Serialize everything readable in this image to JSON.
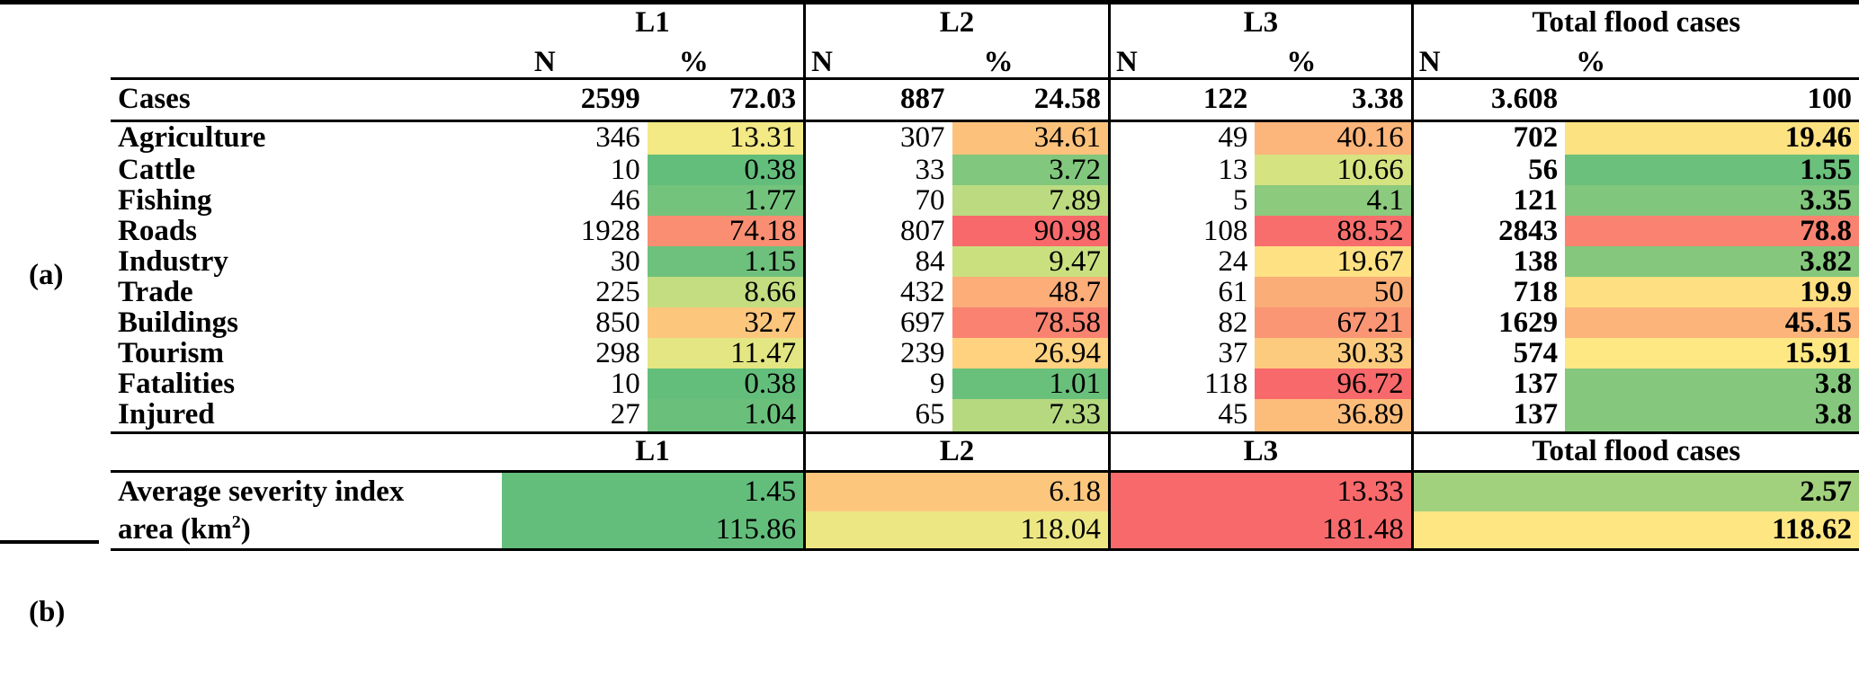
{
  "side_labels": {
    "a": "(a)",
    "b": "(b)"
  },
  "groups": {
    "l1": "L1",
    "l2": "L2",
    "l3": "L3",
    "total": "Total flood cases"
  },
  "subheaders": {
    "n": "N",
    "pct": "%"
  },
  "cases": {
    "label": "Cases",
    "l1_n": "2599",
    "l1_pct": "72.03",
    "l2_n": "887",
    "l2_pct": "24.58",
    "l3_n": "122",
    "l3_pct": "3.38",
    "total_n": "3.608",
    "total_pct": "100"
  },
  "rows": [
    {
      "label": "Agriculture",
      "l1_n": "346",
      "l1_pct": "13.31",
      "l2_n": "307",
      "l2_pct": "34.61",
      "l3_n": "49",
      "l3_pct": "40.16",
      "total_n": "702",
      "total_pct": "19.46",
      "colors": {
        "l1": "#f3e985",
        "l2": "#fcc27c",
        "l3": "#fcb57a",
        "total": "#fde282"
      }
    },
    {
      "label": "Cattle",
      "l1_n": "10",
      "l1_pct": "0.38",
      "l2_n": "33",
      "l2_pct": "3.72",
      "l3_n": "13",
      "l3_pct": "10.66",
      "total_n": "56",
      "total_pct": "1.55",
      "colors": {
        "l1": "#63be7b",
        "l2": "#81c77d",
        "l3": "#d6e381",
        "total": "#6bc07b"
      }
    },
    {
      "label": "Fishing",
      "l1_n": "46",
      "l1_pct": "1.77",
      "l2_n": "70",
      "l2_pct": "7.89",
      "l3_n": "5",
      "l3_pct": "4.1",
      "total_n": "121",
      "total_pct": "3.35",
      "colors": {
        "l1": "#74c37c",
        "l2": "#bcdb80",
        "l3": "#8cca7e",
        "total": "#80c67d"
      }
    },
    {
      "label": "Roads",
      "l1_n": "1928",
      "l1_pct": "74.18",
      "l2_n": "807",
      "l2_pct": "90.98",
      "l3_n": "108",
      "l3_pct": "88.52",
      "total_n": "2843",
      "total_pct": "78.8",
      "colors": {
        "l1": "#f98e72",
        "l2": "#f8696b",
        "l3": "#f86e6c",
        "total": "#f98370"
      }
    },
    {
      "label": "Industry",
      "l1_n": "30",
      "l1_pct": "1.15",
      "l2_n": "84",
      "l2_pct": "9.47",
      "l3_n": "24",
      "l3_pct": "19.67",
      "total_n": "138",
      "total_pct": "3.82",
      "colors": {
        "l1": "#6ec17c",
        "l2": "#cae07f",
        "l3": "#fee183",
        "total": "#85c87d"
      }
    },
    {
      "label": "Trade",
      "l1_n": "225",
      "l1_pct": "8.66",
      "l2_n": "432",
      "l2_pct": "48.7",
      "l3_n": "61",
      "l3_pct": "50",
      "total_n": "718",
      "total_pct": "19.9",
      "colors": {
        "l1": "#c3dd80",
        "l2": "#fcad78",
        "l3": "#fbad78",
        "total": "#fee082"
      }
    },
    {
      "label": "Buildings",
      "l1_n": "850",
      "l1_pct": "32.7",
      "l2_n": "697",
      "l2_pct": "78.58",
      "l3_n": "82",
      "l3_pct": "67.21",
      "total_n": "1629",
      "total_pct": "45.15",
      "colors": {
        "l1": "#fdc67d",
        "l2": "#f98370",
        "l3": "#fa9674",
        "total": "#fcb47a"
      }
    },
    {
      "label": "Tourism",
      "l1_n": "298",
      "l1_pct": "11.47",
      "l2_n": "239",
      "l2_pct": "26.94",
      "l3_n": "37",
      "l3_pct": "30.33",
      "total_n": "574",
      "total_pct": "15.91",
      "colors": {
        "l1": "#e3e682",
        "l2": "#fed27f",
        "l3": "#fdcb7e",
        "total": "#fee883"
      }
    },
    {
      "label": "Fatalities",
      "l1_n": "10",
      "l1_pct": "0.38",
      "l2_n": "9",
      "l2_pct": "1.01",
      "l3_n": "118",
      "l3_pct": "96.72",
      "total_n": "137",
      "total_pct": "3.8",
      "colors": {
        "l1": "#63be7b",
        "l2": "#69c07b",
        "l3": "#f8696b",
        "total": "#85c87d"
      }
    },
    {
      "label": "Injured",
      "l1_n": "27",
      "l1_pct": "1.04",
      "l2_n": "65",
      "l2_pct": "7.33",
      "l3_n": "45",
      "l3_pct": "36.89",
      "total_n": "137",
      "total_pct": "3.8",
      "colors": {
        "l1": "#6ac07b",
        "l2": "#b6d980",
        "l3": "#fcbd7b",
        "total": "#85c87d"
      }
    }
  ],
  "section_b": {
    "rows": [
      {
        "label": "Average severity index",
        "l1": "1.45",
        "l2": "6.18",
        "l3": "13.33",
        "total": "2.57",
        "colors": {
          "l1": "#63be7b",
          "l2": "#fcc77d",
          "l3": "#f8696b",
          "total": "#a2d17e"
        }
      },
      {
        "label_main": "area (km",
        "label_sup": "2",
        "label_end": ")",
        "l1": "115.86",
        "l2": "118.04",
        "l3": "181.48",
        "total": "118.62",
        "colors": {
          "l1": "#63be7b",
          "l2": "#ece783",
          "l3": "#f8696b",
          "total": "#fee783"
        }
      }
    ]
  }
}
